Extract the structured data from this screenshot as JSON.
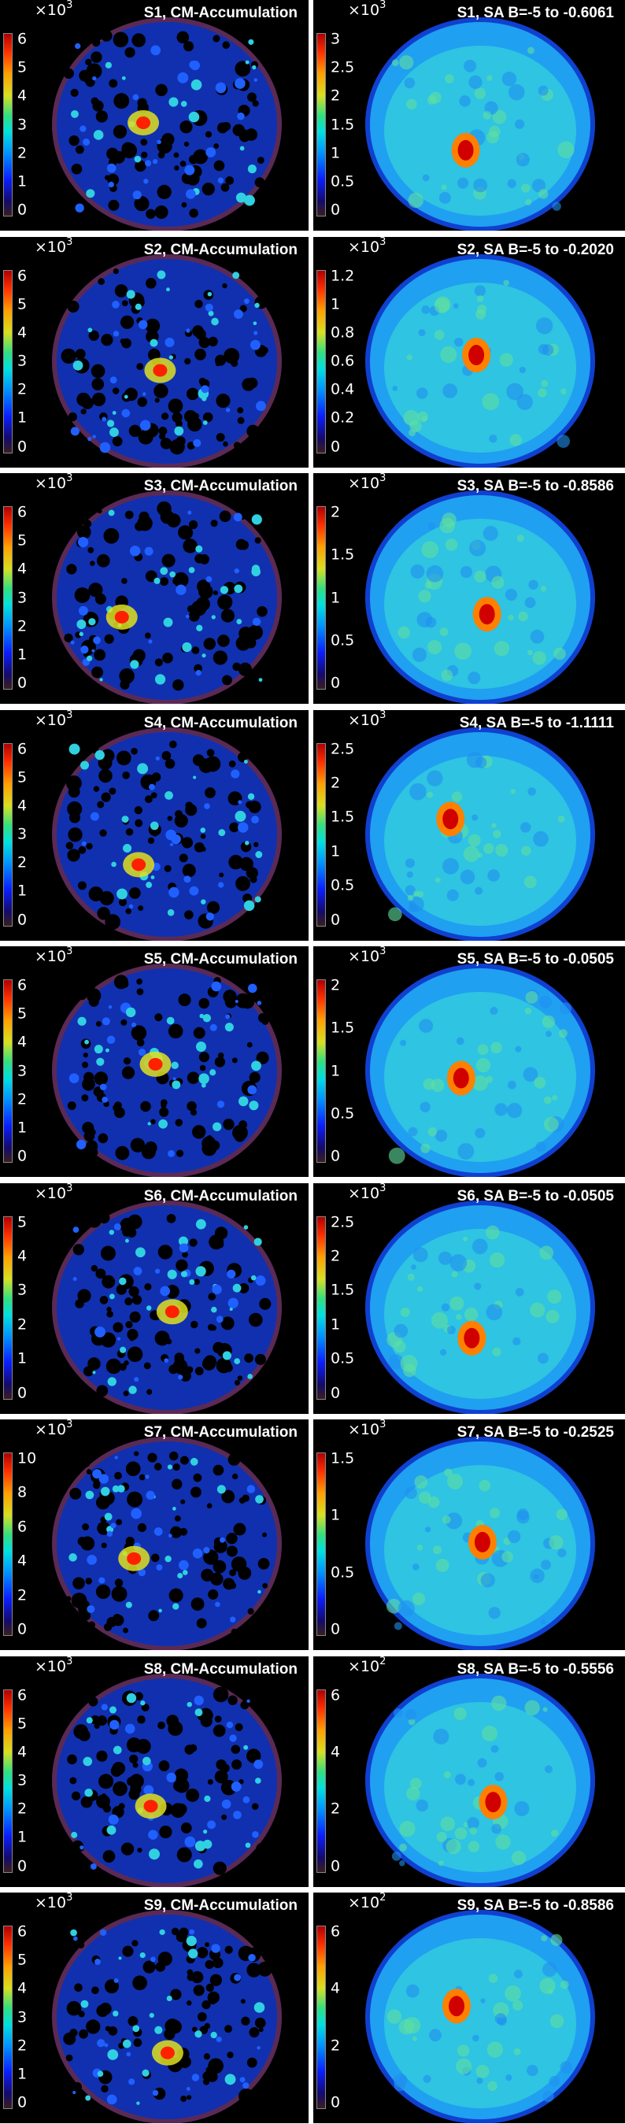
{
  "panels": [
    {
      "title": "S1, CM-Accumulation",
      "mult": "×10",
      "exp": "3",
      "ticks": [
        "6",
        "5",
        "4",
        "3",
        "2",
        "1",
        "0"
      ],
      "type": "cm"
    },
    {
      "title": "S1, SA B=-5 to -0.6061",
      "mult": "×10",
      "exp": "3",
      "ticks": [
        "3",
        "2.5",
        "2",
        "1.5",
        "1",
        "0.5",
        "0"
      ],
      "type": "sa"
    },
    {
      "title": "S2, CM-Accumulation",
      "mult": "×10",
      "exp": "3",
      "ticks": [
        "6",
        "5",
        "4",
        "3",
        "2",
        "1",
        "0"
      ],
      "type": "cm"
    },
    {
      "title": "S2, SA B=-5 to -0.2020",
      "mult": "×10",
      "exp": "3",
      "ticks": [
        "1.2",
        "1",
        "0.8",
        "0.6",
        "0.4",
        "0.2",
        "0"
      ],
      "type": "sa"
    },
    {
      "title": "S3, CM-Accumulation",
      "mult": "×10",
      "exp": "3",
      "ticks": [
        "6",
        "5",
        "4",
        "3",
        "2",
        "1",
        "0"
      ],
      "type": "cm"
    },
    {
      "title": "S3, SA B=-5 to -0.8586",
      "mult": "×10",
      "exp": "3",
      "ticks": [
        "2",
        "1.5",
        "1",
        "0.5",
        "0"
      ],
      "type": "sa"
    },
    {
      "title": "S4, CM-Accumulation",
      "mult": "×10",
      "exp": "3",
      "ticks": [
        "6",
        "5",
        "4",
        "3",
        "2",
        "1",
        "0"
      ],
      "type": "cm"
    },
    {
      "title": "S4, SA B=-5 to -1.1111",
      "mult": "×10",
      "exp": "3",
      "ticks": [
        "2.5",
        "2",
        "1.5",
        "1",
        "0.5",
        "0"
      ],
      "type": "sa"
    },
    {
      "title": "S5, CM-Accumulation",
      "mult": "×10",
      "exp": "3",
      "ticks": [
        "6",
        "5",
        "4",
        "3",
        "2",
        "1",
        "0"
      ],
      "type": "cm"
    },
    {
      "title": "S5, SA B=-5 to -0.0505",
      "mult": "×10",
      "exp": "3",
      "ticks": [
        "2",
        "1.5",
        "1",
        "0.5",
        "0"
      ],
      "type": "sa"
    },
    {
      "title": "S6, CM-Accumulation",
      "mult": "×10",
      "exp": "3",
      "ticks": [
        "5",
        "4",
        "3",
        "2",
        "1",
        "0"
      ],
      "type": "cm"
    },
    {
      "title": "S6, SA B=-5 to -0.0505",
      "mult": "×10",
      "exp": "3",
      "ticks": [
        "2.5",
        "2",
        "1.5",
        "1",
        "0.5",
        "0"
      ],
      "type": "sa"
    },
    {
      "title": "S7, CM-Accumulation",
      "mult": "×10",
      "exp": "3",
      "ticks": [
        "10",
        "8",
        "6",
        "4",
        "2",
        "0"
      ],
      "type": "cm"
    },
    {
      "title": "S7, SA B=-5 to -0.2525",
      "mult": "×10",
      "exp": "3",
      "ticks": [
        "1.5",
        "1",
        "0.5",
        "0"
      ],
      "type": "sa"
    },
    {
      "title": "S8, CM-Accumulation",
      "mult": "×10",
      "exp": "3",
      "ticks": [
        "6",
        "5",
        "4",
        "3",
        "2",
        "1",
        "0"
      ],
      "type": "cm"
    },
    {
      "title": "S8, SA B=-5 to -0.5556",
      "mult": "×10",
      "exp": "2",
      "ticks": [
        "6",
        "4",
        "2",
        "0"
      ],
      "type": "sa"
    },
    {
      "title": "S9, CM-Accumulation",
      "mult": "×10",
      "exp": "3",
      "ticks": [
        "6",
        "5",
        "4",
        "3",
        "2",
        "1",
        "0"
      ],
      "type": "cm"
    },
    {
      "title": "S9, SA B=-5 to -0.8586",
      "mult": "×10",
      "exp": "2",
      "ticks": [
        "6",
        "4",
        "2",
        "0"
      ],
      "type": "sa"
    }
  ]
}
